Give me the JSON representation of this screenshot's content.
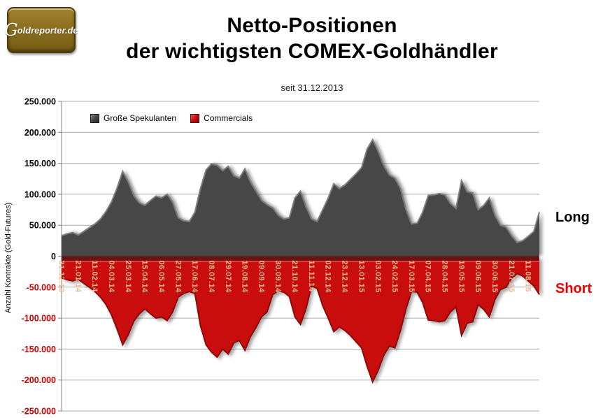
{
  "logo": {
    "g": "G",
    "rest": "oldreporter.de"
  },
  "header": {
    "title_line1": "Netto-Positionen",
    "title_line2": "der wichtigsten COMEX-Goldhändler",
    "subtitle": "seit 31.12.2013"
  },
  "side_labels": {
    "long": "Long",
    "short": "Short"
  },
  "colors": {
    "speculators_fill": "#464646",
    "speculators_edge": "#7b7b7b",
    "commercials_fill": "#c90d0d",
    "commercials_edge": "#8f0909",
    "zero_band": "#6b1212",
    "zero_band_highlight": "#e8473f",
    "gridline": "#ababab",
    "axis": "#808080",
    "x_tick_label": "#f1bd97",
    "y_tick_positive": "#000000",
    "y_tick_negative": "#cc0000",
    "long_label": "#000000",
    "short_label": "#ee0000",
    "logo_gold": "#8a6f1f"
  },
  "chart_data": {
    "type": "area",
    "title": "Netto-Positionen der wichtigsten COMEX-Goldhändler",
    "subtitle": "seit 31.12.2013",
    "ylabel": "Anzahl Kontrakte  (Gold-Futures)",
    "ylim": [
      -250000,
      250000
    ],
    "grid": true,
    "legend_position": "top-left-inside",
    "y_tick_labels": [
      "250.000",
      "200.000",
      "150.000",
      "100.000",
      "50.000",
      "0",
      "-50.000",
      "-100.000",
      "-150.000",
      "-200.000",
      "-250.000"
    ],
    "y_tick_values": [
      250000,
      200000,
      150000,
      100000,
      50000,
      0,
      -50000,
      -100000,
      -150000,
      -200000,
      -250000
    ],
    "x_unit": "weekly CoT reporting dates",
    "x_tick_every_n_points": 3,
    "x_tick_labels": [
      "31.12.13",
      "21.01.14",
      "11.02.14",
      "04.03.14",
      "25.03.14",
      "15.04.14",
      "06.05.14",
      "27.05.14",
      "17.06.14",
      "08.07.14",
      "29.07.14",
      "19.08.14",
      "09.09.14",
      "30.09.14",
      "21.10.14",
      "11.11.14",
      "02.12.14",
      "23.12.14",
      "13.01.15",
      "03.02.15",
      "24.02.15",
      "17.03.15",
      "07.04.15",
      "28.04.15",
      "19.05.15",
      "09.06.15",
      "30.06.15",
      "21.07.15",
      "11.08.15"
    ],
    "series": [
      {
        "name": "Große Spekulanten",
        "side": "Long",
        "color": "#464646",
        "values": [
          33000,
          36000,
          38000,
          34000,
          40000,
          46000,
          52000,
          60000,
          72000,
          88000,
          110000,
          137000,
          120000,
          98000,
          86000,
          82000,
          90000,
          97000,
          94000,
          100000,
          87000,
          62000,
          57000,
          56000,
          71000,
          109000,
          139000,
          149000,
          147000,
          138000,
          145000,
          130000,
          126000,
          141000,
          120000,
          105000,
          90000,
          83000,
          78000,
          66000,
          60000,
          62000,
          94000,
          105000,
          80000,
          60000,
          56000,
          75000,
          94000,
          117000,
          109000,
          115000,
          124000,
          133000,
          143000,
          173000,
          188000,
          169000,
          146000,
          131000,
          126000,
          109000,
          75000,
          52000,
          53000,
          71000,
          98000,
          99000,
          101000,
          99000,
          85000,
          77000,
          122000,
          104000,
          102000,
          75000,
          82000,
          94000,
          66000,
          50000,
          47000,
          33000,
          22000,
          25000,
          32000,
          40000,
          71000
        ]
      },
      {
        "name": "Commercials",
        "side": "Short",
        "color": "#c90d0d",
        "values": [
          -35000,
          -38000,
          -40000,
          -37000,
          -44000,
          -50000,
          -57000,
          -66000,
          -78000,
          -95000,
          -118000,
          -143000,
          -127000,
          -105000,
          -93000,
          -85000,
          -93000,
          -100000,
          -98000,
          -104000,
          -90000,
          -66000,
          -60000,
          -57000,
          -60000,
          -112000,
          -143000,
          -155000,
          -163000,
          -150000,
          -158000,
          -140000,
          -136000,
          -152000,
          -130000,
          -115000,
          -98000,
          -90000,
          -62000,
          -56000,
          -58000,
          -65000,
          -98000,
          -110000,
          -85000,
          -48000,
          -52000,
          -80000,
          -100000,
          -122000,
          -114000,
          -120000,
          -128000,
          -138000,
          -148000,
          -178000,
          -203000,
          -184000,
          -160000,
          -145000,
          -148000,
          -120000,
          -85000,
          -57000,
          -58000,
          -75000,
          -103000,
          -104000,
          -106000,
          -104000,
          -90000,
          -82000,
          -128000,
          -108000,
          -106000,
          -78000,
          -86000,
          -98000,
          -70000,
          -54000,
          -50000,
          -36000,
          -28000,
          -32000,
          -40000,
          -48000,
          -62000
        ]
      }
    ]
  }
}
